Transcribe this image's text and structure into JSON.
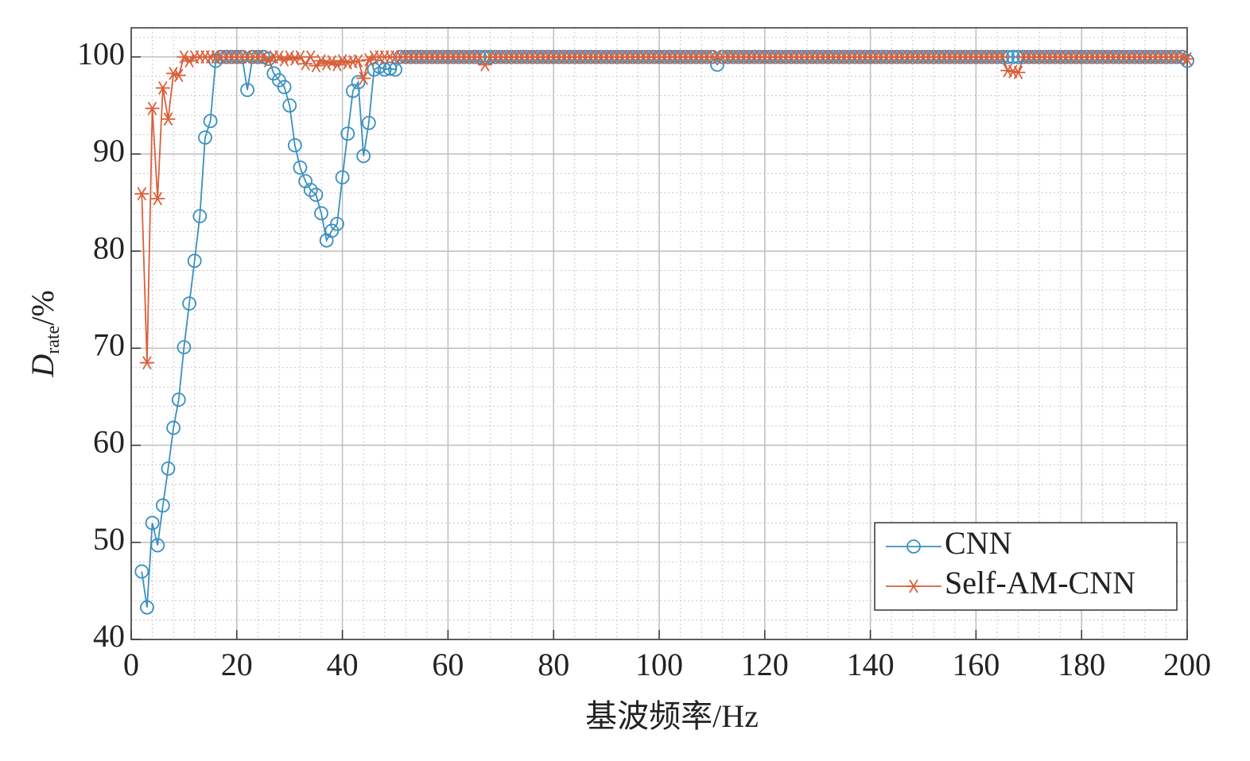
{
  "chart_data": {
    "type": "line",
    "xlabel": "基波频率/Hz",
    "ylabel": {
      "main": "D",
      "sub": "rate",
      "unit": "/%"
    },
    "xlim": [
      0,
      200
    ],
    "xticks": [
      0,
      20,
      40,
      60,
      80,
      100,
      120,
      140,
      160,
      180,
      200
    ],
    "ylim": [
      40,
      103
    ],
    "yticks": [
      40,
      50,
      60,
      70,
      80,
      90,
      100
    ],
    "grid": true,
    "minor_grid": true,
    "legend": "lower right",
    "x": [
      2,
      3,
      4,
      5,
      6,
      7,
      8,
      9,
      10,
      11,
      12,
      13,
      14,
      15,
      16,
      17,
      18,
      19,
      20,
      21,
      22,
      23,
      24,
      25,
      26,
      27,
      28,
      29,
      30,
      31,
      32,
      33,
      34,
      35,
      36,
      37,
      38,
      39,
      40,
      41,
      42,
      43,
      44,
      45,
      46,
      47,
      48,
      49,
      50,
      51,
      52,
      53,
      54,
      55,
      56,
      57,
      58,
      59,
      60,
      61,
      62,
      63,
      64,
      65,
      66,
      67,
      68,
      69,
      70,
      71,
      72,
      73,
      74,
      75,
      76,
      77,
      78,
      79,
      80,
      81,
      82,
      83,
      84,
      85,
      86,
      87,
      88,
      89,
      90,
      91,
      92,
      93,
      94,
      95,
      96,
      97,
      98,
      99,
      100,
      101,
      102,
      103,
      104,
      105,
      106,
      107,
      108,
      109,
      110,
      111,
      112,
      113,
      114,
      115,
      116,
      117,
      118,
      119,
      120,
      121,
      122,
      123,
      124,
      125,
      126,
      127,
      128,
      129,
      130,
      131,
      132,
      133,
      134,
      135,
      136,
      137,
      138,
      139,
      140,
      141,
      142,
      143,
      144,
      145,
      146,
      147,
      148,
      149,
      150,
      151,
      152,
      153,
      154,
      155,
      156,
      157,
      158,
      159,
      160,
      161,
      162,
      163,
      164,
      165,
      166,
      167,
      168,
      169,
      170,
      171,
      172,
      173,
      174,
      175,
      176,
      177,
      178,
      179,
      180,
      181,
      182,
      183,
      184,
      185,
      186,
      187,
      188,
      189,
      190,
      191,
      192,
      193,
      194,
      195,
      196,
      197,
      198,
      199,
      200
    ],
    "series": [
      {
        "name": "CNN",
        "color": "#3a8fc0",
        "marker": "circle",
        "values": [
          47,
          43.3,
          52,
          49.7,
          53.8,
          57.6,
          61.8,
          64.7,
          70.1,
          74.6,
          79,
          83.6,
          91.7,
          93.4,
          99.6,
          100,
          100,
          100,
          100,
          100,
          96.6,
          100,
          100,
          100,
          99.8,
          98.3,
          97.6,
          96.9,
          95,
          90.9,
          88.6,
          87.2,
          86.3,
          85.8,
          83.9,
          81.1,
          82.1,
          82.8,
          87.6,
          92.1,
          96.5,
          97.4,
          89.8,
          93.2,
          98.7,
          99,
          98.7,
          98.8,
          98.7,
          100,
          100,
          100,
          100,
          100,
          100,
          100,
          100,
          100,
          100,
          100,
          100,
          100,
          100,
          100,
          100,
          100,
          100,
          100,
          100,
          100,
          100,
          100,
          100,
          100,
          100,
          100,
          100,
          100,
          100,
          100,
          100,
          100,
          100,
          100,
          100,
          100,
          100,
          100,
          100,
          100,
          100,
          100,
          100,
          100,
          100,
          100,
          100,
          100,
          100,
          100,
          100,
          100,
          100,
          100,
          100,
          100,
          100,
          100,
          100,
          99.2,
          100,
          100,
          100,
          100,
          100,
          100,
          100,
          100,
          100,
          100,
          100,
          100,
          100,
          100,
          100,
          100,
          100,
          100,
          100,
          100,
          100,
          100,
          100,
          100,
          100,
          100,
          100,
          100,
          100,
          100,
          100,
          100,
          100,
          100,
          100,
          100,
          100,
          100,
          100,
          100,
          100,
          100,
          100,
          100,
          100,
          100,
          100,
          100,
          100,
          100,
          100,
          100,
          100,
          100,
          100,
          100,
          100,
          100,
          100,
          100,
          100,
          100,
          100,
          100,
          100,
          100,
          100,
          100,
          100,
          100,
          100,
          100,
          100,
          100,
          100,
          100,
          100,
          100,
          100,
          100,
          100,
          100,
          100,
          100,
          100,
          100,
          100,
          100,
          99.6
        ]
      },
      {
        "name": "Self-AM-CNN",
        "color": "#d9603b",
        "marker": "star",
        "values": [
          85.9,
          68.5,
          94.7,
          85.4,
          96.8,
          93.6,
          98.3,
          98.1,
          100,
          99.6,
          100,
          100,
          100,
          100,
          100,
          100,
          100,
          100,
          100,
          100,
          100,
          100,
          100,
          100,
          99.6,
          100,
          100,
          99.7,
          100,
          99.8,
          100,
          99.3,
          100,
          99.1,
          99.6,
          99.3,
          99.5,
          99.2,
          99.6,
          99.4,
          99.5,
          99.6,
          97.8,
          99.7,
          100,
          100,
          100,
          100,
          100,
          100,
          100,
          100,
          100,
          100,
          100,
          100,
          100,
          100,
          100,
          100,
          100,
          100,
          100,
          100,
          100,
          99.2,
          100,
          100,
          100,
          100,
          100,
          100,
          100,
          100,
          100,
          100,
          100,
          100,
          100,
          100,
          100,
          100,
          100,
          100,
          100,
          100,
          100,
          100,
          100,
          100,
          100,
          100,
          100,
          100,
          100,
          100,
          100,
          100,
          100,
          100,
          100,
          100,
          100,
          100,
          100,
          100,
          100,
          100,
          100,
          100,
          100,
          100,
          100,
          100,
          100,
          100,
          100,
          100,
          100,
          100,
          100,
          100,
          100,
          100,
          100,
          100,
          100,
          100,
          100,
          100,
          100,
          100,
          100,
          100,
          100,
          100,
          100,
          100,
          100,
          100,
          100,
          100,
          100,
          100,
          100,
          100,
          100,
          100,
          100,
          100,
          100,
          100,
          100,
          100,
          100,
          100,
          100,
          100,
          100,
          100,
          100,
          100,
          100,
          100,
          98.6,
          98.5,
          98.4,
          100,
          100,
          100,
          100,
          100,
          100,
          100,
          100,
          100,
          100,
          100,
          100,
          100,
          100,
          100,
          100,
          100,
          100,
          100,
          100,
          100,
          100,
          100,
          100,
          100,
          100,
          100,
          100,
          100,
          100,
          100,
          99.8
        ]
      }
    ]
  }
}
